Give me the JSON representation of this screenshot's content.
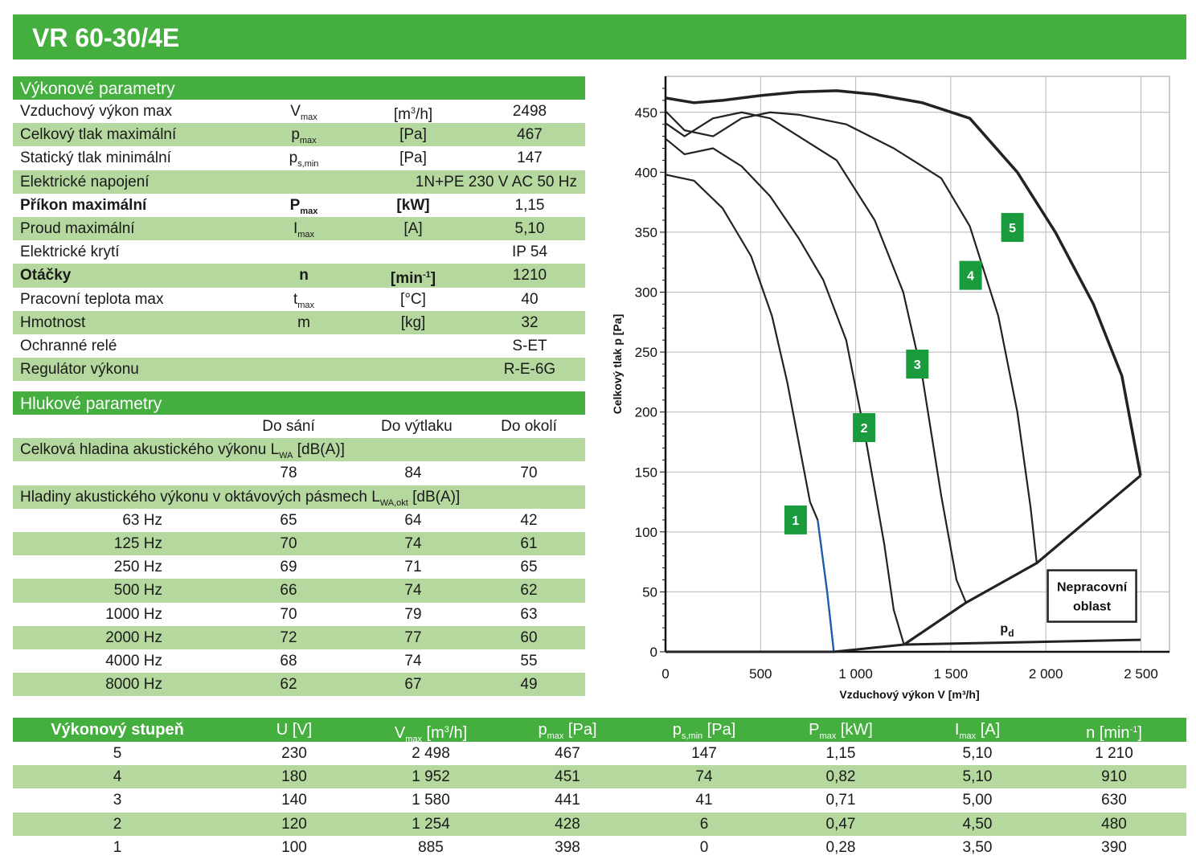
{
  "title": "VR 60-30/4E",
  "performance": {
    "heading": "Výkonové parametry",
    "rows": [
      {
        "label": "Vzduchový výkon max",
        "sym": "V",
        "sub": "max",
        "unit_pre": "[m",
        "unit_sup": "3",
        "unit_post": "/h]",
        "value": "2498"
      },
      {
        "label": "Celkový tlak maximální",
        "sym": "p",
        "sub": "max",
        "unit": "[Pa]",
        "value": "467"
      },
      {
        "label": "Statický tlak minimální",
        "sym": "p",
        "sub": "s,min",
        "unit": "[Pa]",
        "value": "147"
      },
      {
        "label": "Elektrické napojení",
        "wide": "1N+PE 230 V AC 50 Hz"
      },
      {
        "label": "Příkon maximální",
        "sym": "P",
        "sub": "max",
        "unit": "[kW]",
        "value": "1,15",
        "bold": true
      },
      {
        "label": "Proud maximální",
        "sym": "I",
        "sub": "max",
        "unit": "[A]",
        "value": "5,10"
      },
      {
        "label": "Elektrické krytí",
        "value": "IP 54"
      },
      {
        "label": "Otáčky",
        "sym": "n",
        "unit_pre": "[min",
        "unit_sup": "-1",
        "unit_post": "]",
        "value": "1210",
        "bold": true
      },
      {
        "label": "Pracovní teplota max",
        "sym": "t",
        "sub": "max",
        "unit": "[°C]",
        "value": "40"
      },
      {
        "label": "Hmotnost",
        "sym": "m",
        "unit": "[kg]",
        "value": "32"
      },
      {
        "label": "Ochranné relé",
        "value": "S-ET"
      },
      {
        "label": "Regulátor výkonu",
        "value": "R-E-6G"
      }
    ]
  },
  "noise": {
    "heading": "Hlukové parametry",
    "col_headers": [
      "Do sání",
      "Do výtlaku",
      "Do okolí"
    ],
    "total_label": "Celková hladina akustického výkonu L",
    "total_sub": "WA",
    "total_unit": " [dB(A)]",
    "total_values": [
      "78",
      "84",
      "70"
    ],
    "octave_label": "Hladiny akustického výkonu v oktávových pásmech L",
    "octave_sub": "WA,okt",
    "octave_unit": " [dB(A)]",
    "octaves": [
      {
        "freq": "63 Hz",
        "v": [
          "65",
          "64",
          "42"
        ]
      },
      {
        "freq": "125 Hz",
        "v": [
          "70",
          "74",
          "61"
        ]
      },
      {
        "freq": "250 Hz",
        "v": [
          "69",
          "71",
          "65"
        ]
      },
      {
        "freq": "500 Hz",
        "v": [
          "66",
          "74",
          "62"
        ]
      },
      {
        "freq": "1000 Hz",
        "v": [
          "70",
          "79",
          "63"
        ]
      },
      {
        "freq": "2000 Hz",
        "v": [
          "72",
          "77",
          "60"
        ]
      },
      {
        "freq": "4000 Hz",
        "v": [
          "68",
          "74",
          "55"
        ]
      },
      {
        "freq": "8000 Hz",
        "v": [
          "62",
          "67",
          "49"
        ]
      }
    ]
  },
  "stages_table": {
    "headers": {
      "stage": "Výkonový stupeň",
      "u": "U   [V]",
      "v_sym": "V",
      "v_sub": "max",
      "v_unit_pre": "   [m",
      "v_unit_sup": "3",
      "v_unit_post": "/h]",
      "p_sym": "p",
      "p_sub": "max",
      "p_unit": "   [Pa]",
      "ps_sym": "p",
      "ps_sub": "s,min",
      "ps_unit": "   [Pa]",
      "pw_sym": "P",
      "pw_sub": "max",
      "pw_unit": "   [kW]",
      "i_sym": "I",
      "i_sub": "max",
      "i_unit": "   [A]",
      "n_sym": "n   [min",
      "n_sup": "-1",
      "n_post": "]"
    },
    "rows": [
      [
        "5",
        "230",
        "2 498",
        "467",
        "147",
        "1,15",
        "5,10",
        "1 210"
      ],
      [
        "4",
        "180",
        "1 952",
        "451",
        "74",
        "0,82",
        "5,10",
        "910"
      ],
      [
        "3",
        "140",
        "1 580",
        "441",
        "41",
        "0,71",
        "5,00",
        "630"
      ],
      [
        "2",
        "120",
        "1 254",
        "428",
        "6",
        "0,47",
        "4,50",
        "480"
      ],
      [
        "1",
        "100",
        "885",
        "398",
        "0",
        "0,28",
        "3,50",
        "390"
      ]
    ]
  },
  "chart_data": {
    "type": "line",
    "xlabel": "Vzduchový výkon V [m³/h]",
    "ylabel": "Celkový tlak p [Pa]",
    "xlim": [
      0,
      2650
    ],
    "ylim": [
      0,
      480
    ],
    "x_ticks": [
      0,
      500,
      1000,
      1500,
      2000,
      2500
    ],
    "x_tick_labels": [
      "0",
      "500",
      "1 000",
      "1 500",
      "2 000",
      "2 500"
    ],
    "y_ticks": [
      0,
      50,
      100,
      150,
      200,
      250,
      300,
      350,
      400,
      450
    ],
    "y_tick_labels": [
      "0",
      "50",
      "100",
      "150",
      "200",
      "250",
      "300",
      "350",
      "400",
      "450"
    ],
    "grid": true,
    "accent_color": "#1a9c3e",
    "series": [
      {
        "name": "1",
        "points": [
          [
            0,
            398
          ],
          [
            150,
            393
          ],
          [
            300,
            370
          ],
          [
            450,
            330
          ],
          [
            560,
            280
          ],
          [
            640,
            225
          ],
          [
            700,
            175
          ],
          [
            760,
            125
          ],
          [
            800,
            110
          ],
          [
            850,
            50
          ],
          [
            885,
            0
          ]
        ],
        "label_at": [
          680,
          110
        ]
      },
      {
        "name": "2",
        "points": [
          [
            0,
            428
          ],
          [
            100,
            415
          ],
          [
            250,
            420
          ],
          [
            400,
            405
          ],
          [
            550,
            380
          ],
          [
            700,
            345
          ],
          [
            830,
            310
          ],
          [
            950,
            260
          ],
          [
            1050,
            180
          ],
          [
            1150,
            90
          ],
          [
            1200,
            35
          ],
          [
            1254,
            6
          ]
        ],
        "label_at": [
          1040,
          187
        ]
      },
      {
        "name": "3",
        "points": [
          [
            0,
            441
          ],
          [
            100,
            430
          ],
          [
            250,
            445
          ],
          [
            400,
            450
          ],
          [
            550,
            445
          ],
          [
            700,
            430
          ],
          [
            900,
            410
          ],
          [
            1100,
            360
          ],
          [
            1250,
            300
          ],
          [
            1350,
            230
          ],
          [
            1450,
            130
          ],
          [
            1530,
            60
          ],
          [
            1580,
            41
          ]
        ],
        "label_at": [
          1320,
          240
        ]
      },
      {
        "name": "4",
        "points": [
          [
            0,
            451
          ],
          [
            100,
            435
          ],
          [
            250,
            430
          ],
          [
            400,
            445
          ],
          [
            550,
            450
          ],
          [
            700,
            448
          ],
          [
            950,
            440
          ],
          [
            1200,
            420
          ],
          [
            1450,
            395
          ],
          [
            1600,
            355
          ],
          [
            1750,
            280
          ],
          [
            1850,
            200
          ],
          [
            1920,
            120
          ],
          [
            1952,
            74
          ]
        ],
        "label_at": [
          1600,
          314
        ]
      },
      {
        "name": "5",
        "points": [
          [
            0,
            462
          ],
          [
            150,
            458
          ],
          [
            300,
            460
          ],
          [
            500,
            464
          ],
          [
            700,
            467
          ],
          [
            900,
            468
          ],
          [
            1100,
            465
          ],
          [
            1350,
            458
          ],
          [
            1600,
            445
          ],
          [
            1850,
            400
          ],
          [
            2050,
            350
          ],
          [
            2250,
            290
          ],
          [
            2400,
            230
          ],
          [
            2498,
            147
          ]
        ],
        "label_at": [
          1820,
          354
        ]
      }
    ],
    "boundary": [
      [
        1254,
        6
      ],
      [
        1580,
        41
      ],
      [
        1952,
        74
      ],
      [
        2498,
        147
      ]
    ],
    "pd_line": [
      [
        0,
        0
      ],
      [
        885,
        0
      ],
      [
        1254,
        6
      ],
      [
        2498,
        10
      ]
    ],
    "pd_label": "p",
    "pd_sub": "d",
    "nonoperating_label_1": "Nepracovní",
    "nonoperating_label_2": "oblast"
  }
}
